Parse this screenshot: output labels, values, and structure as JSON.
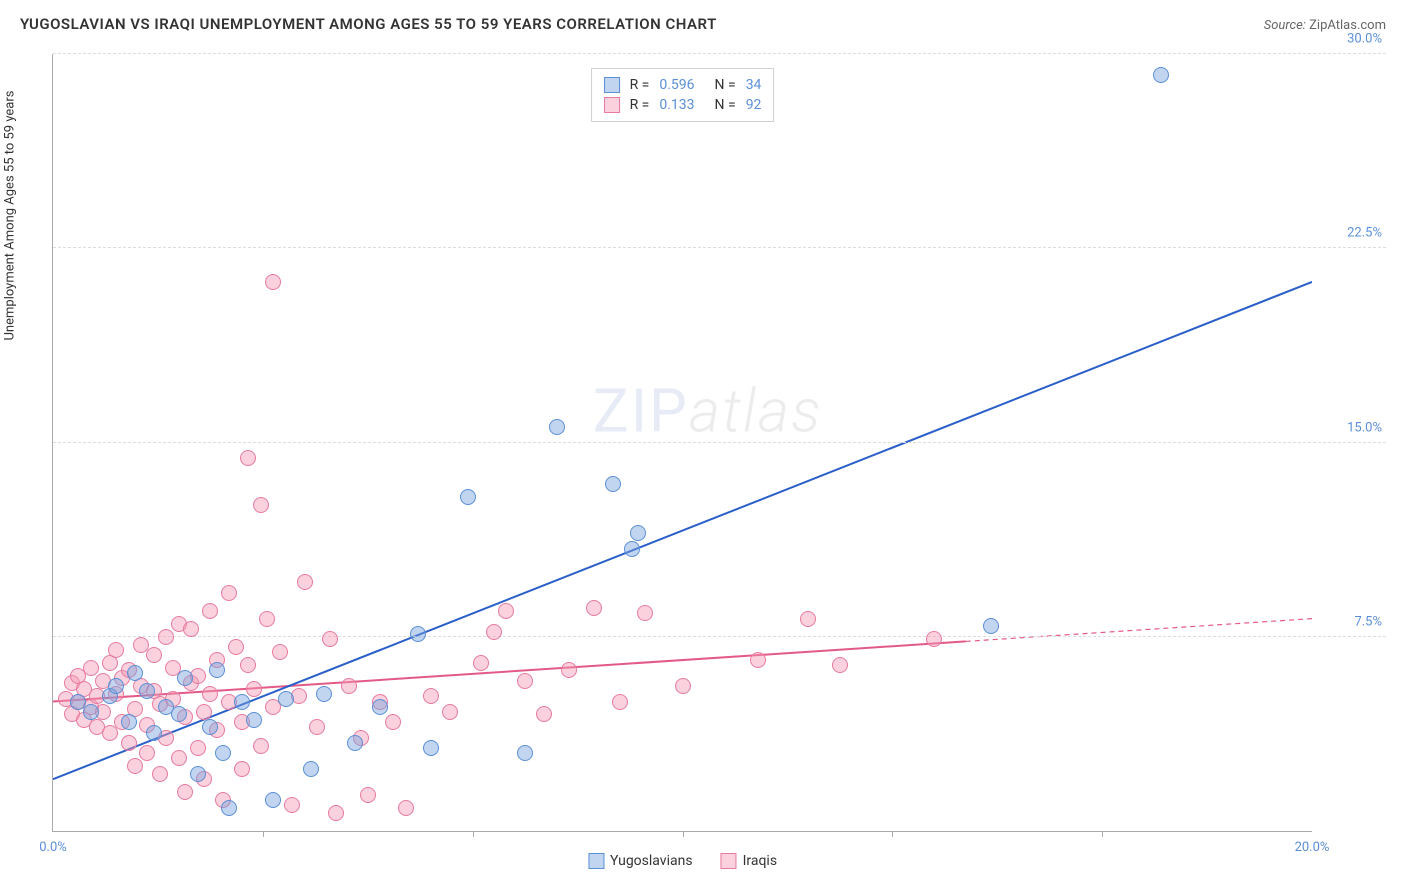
{
  "header": {
    "title": "YUGOSLAVIAN VS IRAQI UNEMPLOYMENT AMONG AGES 55 TO 59 YEARS CORRELATION CHART",
    "source_prefix": "Source: ",
    "source": "ZipAtlas.com"
  },
  "chart": {
    "type": "scatter",
    "ylabel": "Unemployment Among Ages 55 to 59 years",
    "watermark_zip": "ZIP",
    "watermark_atlas": "atlas",
    "xlim": [
      0,
      20
    ],
    "ylim": [
      0,
      30
    ],
    "xtick_labels": [
      "0.0%",
      "20.0%"
    ],
    "xtick_positions": [
      0,
      20
    ],
    "x_minor_ticks": [
      3.33,
      6.67,
      10,
      13.33,
      16.67
    ],
    "ytick_labels": [
      "7.5%",
      "15.0%",
      "22.5%",
      "30.0%"
    ],
    "ytick_positions": [
      7.5,
      15,
      22.5,
      30
    ],
    "grid_color": "#dddddd",
    "axis_color": "#aaaaaa",
    "tick_text_color": "#5b8fd6",
    "background_color": "#ffffff",
    "point_radius": 8,
    "series": {
      "yugoslavians": {
        "label": "Yugoslavians",
        "color_fill": "rgba(118,162,222,0.45)",
        "color_stroke": "#5b8fd6",
        "r_value": "0.596",
        "n_value": "34",
        "regression": {
          "x1": 0,
          "y1": 2.0,
          "x2": 20,
          "y2": 21.2,
          "solid_until_x": 20
        },
        "line_color": "#2a5fc9",
        "points": [
          [
            0.4,
            5.0
          ],
          [
            0.6,
            4.6
          ],
          [
            0.9,
            5.2
          ],
          [
            1.0,
            5.6
          ],
          [
            1.2,
            4.2
          ],
          [
            1.3,
            6.1
          ],
          [
            1.5,
            5.4
          ],
          [
            1.6,
            3.8
          ],
          [
            1.8,
            4.8
          ],
          [
            2.0,
            4.5
          ],
          [
            2.1,
            5.9
          ],
          [
            2.3,
            2.2
          ],
          [
            2.5,
            4.0
          ],
          [
            2.6,
            6.2
          ],
          [
            2.7,
            3.0
          ],
          [
            2.8,
            0.9
          ],
          [
            3.0,
            5.0
          ],
          [
            3.2,
            4.3
          ],
          [
            3.5,
            1.2
          ],
          [
            3.7,
            5.1
          ],
          [
            4.1,
            2.4
          ],
          [
            4.3,
            5.3
          ],
          [
            4.8,
            3.4
          ],
          [
            5.2,
            4.8
          ],
          [
            5.8,
            7.6
          ],
          [
            6.0,
            3.2
          ],
          [
            6.6,
            12.9
          ],
          [
            7.5,
            3.0
          ],
          [
            8.0,
            15.6
          ],
          [
            8.9,
            13.4
          ],
          [
            9.2,
            10.9
          ],
          [
            9.3,
            11.5
          ],
          [
            14.9,
            7.9
          ],
          [
            17.6,
            29.2
          ]
        ]
      },
      "iraqis": {
        "label": "Iraqis",
        "color_fill": "rgba(244,153,179,0.45)",
        "color_stroke": "#e77aa0",
        "r_value": "0.133",
        "n_value": "92",
        "regression": {
          "x1": 0,
          "y1": 5.0,
          "x2": 20,
          "y2": 8.2,
          "solid_until_x": 14.5
        },
        "line_color": "#e35a86",
        "points": [
          [
            0.2,
            5.1
          ],
          [
            0.3,
            4.5
          ],
          [
            0.3,
            5.7
          ],
          [
            0.4,
            5.0
          ],
          [
            0.4,
            6.0
          ],
          [
            0.5,
            4.3
          ],
          [
            0.5,
            5.5
          ],
          [
            0.6,
            4.8
          ],
          [
            0.6,
            6.3
          ],
          [
            0.7,
            5.2
          ],
          [
            0.7,
            4.0
          ],
          [
            0.8,
            5.8
          ],
          [
            0.8,
            4.6
          ],
          [
            0.9,
            6.5
          ],
          [
            0.9,
            3.8
          ],
          [
            1.0,
            5.3
          ],
          [
            1.0,
            7.0
          ],
          [
            1.1,
            4.2
          ],
          [
            1.1,
            5.9
          ],
          [
            1.2,
            3.4
          ],
          [
            1.2,
            6.2
          ],
          [
            1.3,
            4.7
          ],
          [
            1.3,
            2.5
          ],
          [
            1.4,
            5.6
          ],
          [
            1.4,
            7.2
          ],
          [
            1.5,
            4.1
          ],
          [
            1.5,
            3.0
          ],
          [
            1.6,
            5.4
          ],
          [
            1.6,
            6.8
          ],
          [
            1.7,
            2.2
          ],
          [
            1.7,
            4.9
          ],
          [
            1.8,
            7.5
          ],
          [
            1.8,
            3.6
          ],
          [
            1.9,
            5.1
          ],
          [
            1.9,
            6.3
          ],
          [
            2.0,
            2.8
          ],
          [
            2.0,
            8.0
          ],
          [
            2.1,
            4.4
          ],
          [
            2.1,
            1.5
          ],
          [
            2.2,
            5.7
          ],
          [
            2.2,
            7.8
          ],
          [
            2.3,
            3.2
          ],
          [
            2.3,
            6.0
          ],
          [
            2.4,
            4.6
          ],
          [
            2.4,
            2.0
          ],
          [
            2.5,
            8.5
          ],
          [
            2.5,
            5.3
          ],
          [
            2.6,
            6.6
          ],
          [
            2.6,
            3.9
          ],
          [
            2.7,
            1.2
          ],
          [
            2.8,
            9.2
          ],
          [
            2.8,
            5.0
          ],
          [
            2.9,
            7.1
          ],
          [
            3.0,
            4.2
          ],
          [
            3.0,
            2.4
          ],
          [
            3.1,
            14.4
          ],
          [
            3.1,
            6.4
          ],
          [
            3.2,
            5.5
          ],
          [
            3.3,
            3.3
          ],
          [
            3.3,
            12.6
          ],
          [
            3.4,
            8.2
          ],
          [
            3.5,
            21.2
          ],
          [
            3.5,
            4.8
          ],
          [
            3.6,
            6.9
          ],
          [
            3.8,
            1.0
          ],
          [
            3.9,
            5.2
          ],
          [
            4.0,
            9.6
          ],
          [
            4.2,
            4.0
          ],
          [
            4.4,
            7.4
          ],
          [
            4.5,
            0.7
          ],
          [
            4.7,
            5.6
          ],
          [
            4.9,
            3.6
          ],
          [
            5.0,
            1.4
          ],
          [
            5.2,
            5.0
          ],
          [
            5.4,
            4.2
          ],
          [
            5.6,
            0.9
          ],
          [
            6.0,
            5.2
          ],
          [
            6.3,
            4.6
          ],
          [
            6.8,
            6.5
          ],
          [
            7.0,
            7.7
          ],
          [
            7.2,
            8.5
          ],
          [
            7.5,
            5.8
          ],
          [
            7.8,
            4.5
          ],
          [
            8.2,
            6.2
          ],
          [
            8.6,
            8.6
          ],
          [
            9.0,
            5.0
          ],
          [
            9.4,
            8.4
          ],
          [
            10.0,
            5.6
          ],
          [
            11.2,
            6.6
          ],
          [
            12.0,
            8.2
          ],
          [
            12.5,
            6.4
          ],
          [
            14.0,
            7.4
          ]
        ]
      }
    },
    "legend_top_labels": {
      "r": "R =",
      "n": "N ="
    }
  }
}
